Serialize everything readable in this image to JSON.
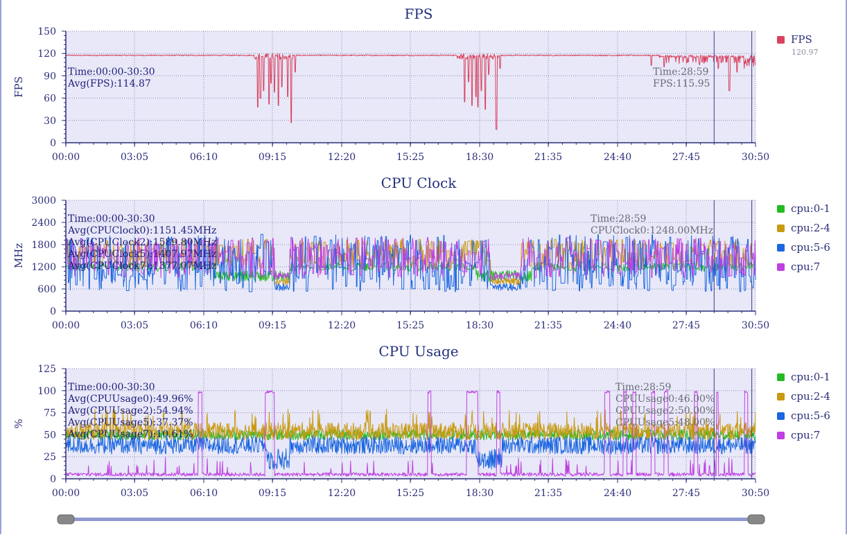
{
  "colors": {
    "plot_bg": "#e8e8f8",
    "axis": "#2b2e78",
    "grid": "#8c8cb4",
    "fps": "#d9425e",
    "cpu01": "#22bb22",
    "cpu24": "#c89a10",
    "cpu56": "#1a66e0",
    "cpu7": "#c040e0",
    "slider": "#8f99d2",
    "handle": "#888888"
  },
  "slider": {
    "start": "00:00",
    "end": "30:50"
  },
  "chart_data": [
    {
      "id": "fps",
      "type": "line",
      "title": "FPS",
      "ylabel": "FPS",
      "xlabel": "",
      "x_range_seconds": [
        0,
        1850
      ],
      "xticks": [
        "00:00",
        "03:05",
        "06:10",
        "09:15",
        "12:20",
        "15:25",
        "18:30",
        "21:35",
        "24:40",
        "27:45",
        "30:50"
      ],
      "ylim": [
        0,
        150
      ],
      "yticks": [
        "150",
        "120",
        "90",
        "60",
        "30",
        "0"
      ],
      "grid": true,
      "legend_position": "right",
      "markers_at": [
        "28:59",
        "30:40"
      ],
      "legend": [
        {
          "name": "FPS",
          "color": "#d9425e",
          "value": "120.97"
        }
      ],
      "annotations_left": [
        "Time:00:00-30:30",
        "Avg(FPS):114.87"
      ],
      "annotations_right": [
        "Time:28:59",
        "FPS:115.95"
      ],
      "series": [
        {
          "name": "FPS",
          "color": "#d9425e",
          "kind": "fps",
          "baseline": 117.5,
          "dips": [
            [
              "08:35",
              48
            ],
            [
              "08:42",
              60
            ],
            [
              "08:50",
              70
            ],
            [
              "09:05",
              52
            ],
            [
              "09:10",
              80
            ],
            [
              "09:20",
              68
            ],
            [
              "09:30",
              50
            ],
            [
              "09:40",
              75
            ],
            [
              "09:55",
              62
            ],
            [
              "10:05",
              27
            ],
            [
              "10:15",
              95
            ],
            [
              "17:50",
              55
            ],
            [
              "18:00",
              82
            ],
            [
              "18:10",
              50
            ],
            [
              "18:20",
              62
            ],
            [
              "18:25",
              48
            ],
            [
              "18:35",
              70
            ],
            [
              "18:45",
              45
            ],
            [
              "18:55",
              92
            ],
            [
              "19:15",
              18
            ],
            [
              "19:25",
              100
            ],
            [
              "26:10",
              104
            ],
            [
              "26:45",
              102
            ],
            [
              "28:20",
              105
            ],
            [
              "29:10",
              100
            ],
            [
              "29:40",
              70
            ],
            [
              "30:00",
              95
            ],
            [
              "30:20",
              100
            ]
          ]
        }
      ]
    },
    {
      "id": "clock",
      "type": "line",
      "title": "CPU Clock",
      "ylabel": "MHz",
      "xlabel": "",
      "x_range_seconds": [
        0,
        1850
      ],
      "xticks": [
        "00:00",
        "03:05",
        "06:10",
        "09:15",
        "12:20",
        "15:25",
        "18:30",
        "21:35",
        "24:40",
        "27:45",
        "30:50"
      ],
      "ylim": [
        0,
        3000
      ],
      "yticks": [
        "3000",
        "2400",
        "1800",
        "1200",
        "600",
        "0"
      ],
      "grid": true,
      "legend_position": "right",
      "markers_at": [
        "28:59",
        "30:40"
      ],
      "legend": [
        {
          "name": "cpu:0-1",
          "color": "#22bb22"
        },
        {
          "name": "cpu:2-4",
          "color": "#c89a10"
        },
        {
          "name": "cpu:5-6",
          "color": "#1a66e0"
        },
        {
          "name": "cpu:7",
          "color": "#c040e0"
        }
      ],
      "annotations_left": [
        "Time:00:00-30:30",
        "Avg(CPUClock0):1151.45MHz",
        "Avg(CPUClock2):1589.80MHz",
        "Avg(CPUClock5):1407.97MHz",
        "Avg(CPUClock7):1377.07MHz"
      ],
      "annotations_right": [
        "Time:28:59",
        "CPUClock0:1248.00MHz"
      ],
      "series": [
        {
          "name": "cpu:0-1",
          "color": "#22bb22",
          "kind": "clock",
          "center": 1200,
          "amp": 120,
          "low": 800
        },
        {
          "name": "cpu:2-4",
          "color": "#c89a10",
          "kind": "clock",
          "center": 1550,
          "amp": 400,
          "low": 700
        },
        {
          "name": "cpu:5-6",
          "color": "#1a66e0",
          "kind": "clock",
          "center": 1300,
          "amp": 780,
          "low": 550
        },
        {
          "name": "cpu:7",
          "color": "#c040e0",
          "kind": "clock",
          "center": 1450,
          "amp": 550,
          "low": 850
        }
      ]
    },
    {
      "id": "usage",
      "type": "line",
      "title": "CPU Usage",
      "ylabel": "%",
      "xlabel": "",
      "x_range_seconds": [
        0,
        1850
      ],
      "xticks": [
        "00:00",
        "03:05",
        "06:10",
        "09:15",
        "12:20",
        "15:25",
        "18:30",
        "21:35",
        "24:40",
        "27:45",
        "30:50"
      ],
      "ylim": [
        0,
        125
      ],
      "yticks": [
        "125",
        "100",
        "75",
        "50",
        "25",
        "0"
      ],
      "grid": true,
      "legend_position": "right",
      "markers_at": [
        "28:59",
        "30:40"
      ],
      "legend": [
        {
          "name": "cpu:0-1",
          "color": "#22bb22"
        },
        {
          "name": "cpu:2-4",
          "color": "#c89a10"
        },
        {
          "name": "cpu:5-6",
          "color": "#1a66e0"
        },
        {
          "name": "cpu:7",
          "color": "#c040e0"
        }
      ],
      "annotations_left": [
        "Time:00:00-30:30",
        "Avg(CPUUsage0):49.96%",
        "Avg(CPUUsage2):54.94%",
        "Avg(CPUUsage5):37.37%",
        "Avg(CPUUsage7):10.61%"
      ],
      "annotations_right": [
        "Time:28:59",
        "CPUUsage0:46.00%",
        "CPUUsage2:50.00%",
        "CPUUsage5:48.00%"
      ],
      "series": [
        {
          "name": "cpu:0-1",
          "color": "#22bb22",
          "kind": "usage",
          "center": 50,
          "amp": 6
        },
        {
          "name": "cpu:2-4",
          "color": "#c89a10",
          "kind": "usage",
          "center": 54,
          "amp": 10
        },
        {
          "name": "cpu:5-6",
          "color": "#1a66e0",
          "kind": "usage",
          "center": 38,
          "amp": 10
        },
        {
          "name": "cpu:7",
          "color": "#c040e0",
          "kind": "usage7",
          "center": 3,
          "amp": 4,
          "spikes": [
            [
              "05:55",
              "06:05"
            ],
            [
              "08:55",
              "09:20"
            ],
            [
              "16:10",
              "16:20"
            ],
            [
              "17:55",
              "18:05"
            ],
            [
              "18:05",
              "18:25"
            ],
            [
              "19:15",
              "19:25"
            ],
            [
              "24:05",
              "24:20"
            ],
            [
              "24:55",
              "25:05"
            ],
            [
              "25:20",
              "25:30"
            ],
            [
              "26:10",
              "26:20"
            ],
            [
              "26:45",
              "26:55"
            ],
            [
              "28:05",
              "28:15"
            ],
            [
              "29:05",
              "29:10"
            ],
            [
              "30:20",
              "30:30"
            ]
          ]
        }
      ]
    }
  ]
}
